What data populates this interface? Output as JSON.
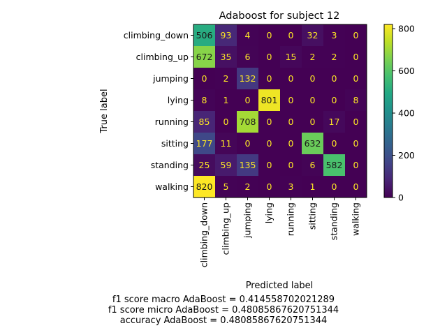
{
  "chart_data": {
    "type": "heatmap",
    "title": "Adaboost for subject 12",
    "xlabel": "Predicted label",
    "ylabel": "True label",
    "x_categories": [
      "climbing_down",
      "climbing_up",
      "jumping",
      "lying",
      "running",
      "sitting",
      "standing",
      "walking"
    ],
    "y_categories": [
      "climbing_down",
      "climbing_up",
      "jumping",
      "lying",
      "running",
      "sitting",
      "standing",
      "walking"
    ],
    "values": [
      [
        506,
        93,
        4,
        0,
        0,
        32,
        3,
        0
      ],
      [
        672,
        35,
        6,
        0,
        15,
        2,
        2,
        0
      ],
      [
        0,
        2,
        132,
        0,
        0,
        0,
        0,
        0
      ],
      [
        8,
        1,
        0,
        801,
        0,
        0,
        0,
        8
      ],
      [
        85,
        0,
        708,
        0,
        0,
        0,
        17,
        0
      ],
      [
        177,
        11,
        0,
        0,
        0,
        632,
        0,
        0
      ],
      [
        25,
        59,
        135,
        0,
        0,
        6,
        582,
        0
      ],
      [
        820,
        5,
        2,
        0,
        3,
        1,
        0,
        0
      ]
    ],
    "colormap": "viridis",
    "vmin": 0,
    "vmax": 820,
    "colorbar_ticks": [
      0,
      200,
      400,
      600,
      800
    ],
    "text_color_dark": "#fde725",
    "text_color_light": "#1a1a1a"
  },
  "footer": {
    "f1_macro": "f1 score macro AdaBoost = 0.414558702021289",
    "f1_micro": "f1 score micro AdaBoost = 0.48085867620751344",
    "accuracy": "accuracy AdaBoost = 0.48085867620751344"
  }
}
